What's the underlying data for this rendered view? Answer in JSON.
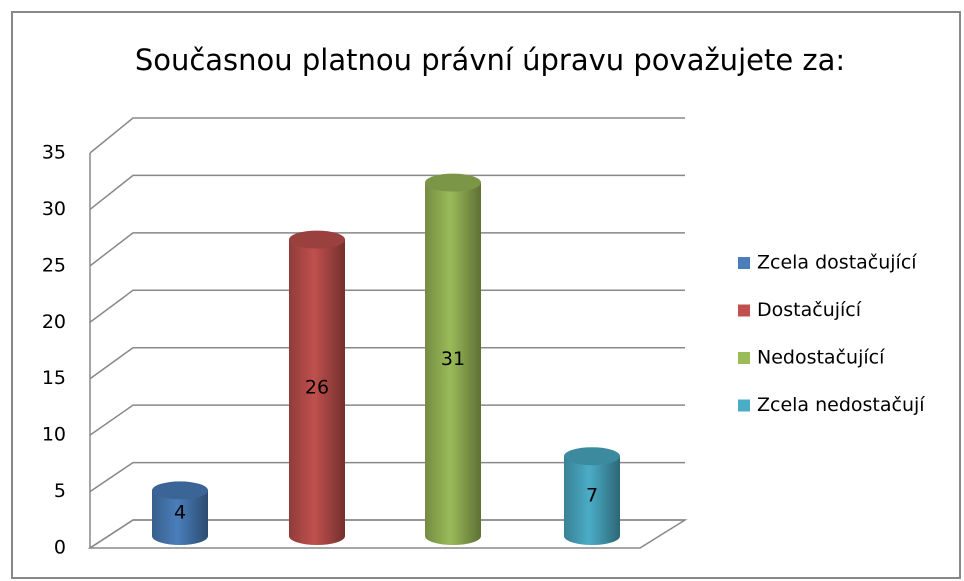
{
  "chart_data": {
    "type": "bar",
    "title": "Současnou platnou právní úpravu považujete za:",
    "series": [
      {
        "name": "Zcela dostačující",
        "color": "#4a7ebb",
        "values": [
          4
        ]
      },
      {
        "name": "Dostačující",
        "color": "#c0504d",
        "values": [
          26
        ]
      },
      {
        "name": "Nedostačující",
        "color": "#9bbb59",
        "values": [
          31
        ]
      },
      {
        "name": "Zcela nedostačují",
        "color": "#4bacc6",
        "values": [
          7
        ]
      }
    ],
    "ylim": [
      0,
      35
    ],
    "yticks": [
      0,
      5,
      10,
      15,
      20,
      25,
      30,
      35
    ],
    "grid": true,
    "legend": "right"
  }
}
